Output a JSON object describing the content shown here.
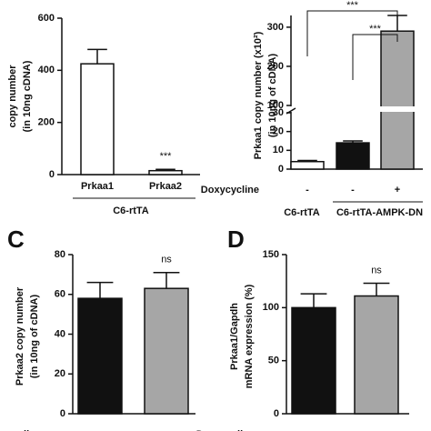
{
  "chart_data": [
    {
      "type": "bar",
      "categories": [
        "Prkaa1",
        "Prkaa2"
      ],
      "values": [
        425,
        15
      ],
      "errors": [
        55,
        5
      ],
      "colors": [
        "#ffffff",
        "#ffffff"
      ],
      "ylim": [
        0,
        600
      ],
      "yticks": [
        0,
        200,
        400,
        600
      ],
      "y_label": [
        "copy number",
        "(in 10ng cDNA)"
      ],
      "group": "C6-rtTA",
      "annotation": "***"
    },
    {
      "type": "bar",
      "y_break": true,
      "categories": [
        "-",
        "-",
        "+"
      ],
      "x_label": "Doxycycline",
      "values": [
        4,
        14,
        290
      ],
      "errors": [
        0.6,
        1,
        40
      ],
      "colors": [
        "#ffffff",
        "#111111",
        "#a6a6a6"
      ],
      "ylim": [
        0,
        30
      ],
      "yticks": [
        0,
        10,
        20,
        30
      ],
      "ylim_upper": [
        100,
        330
      ],
      "yticks_upper": [
        100,
        200,
        300
      ],
      "y_label": [
        "Prkaa1 copy number (x10²)",
        "(in 10ng of cDNA)"
      ],
      "groups": [
        "C6-rtTA",
        "C6-rtTA-AMPK-DN"
      ],
      "annotations": [
        "***",
        "***"
      ]
    },
    {
      "type": "bar",
      "panel": "C",
      "categories": [
        "-",
        "+"
      ],
      "x_label": "Doxycycline",
      "values": [
        58,
        63
      ],
      "errors": [
        8,
        8
      ],
      "colors": [
        "#111111",
        "#a6a6a6"
      ],
      "ylim": [
        0,
        80
      ],
      "yticks": [
        0,
        20,
        40,
        60,
        80
      ],
      "y_label": [
        "Prkaa2 copy number",
        "(in 10ng of cDNA)"
      ],
      "annotation": "ns"
    },
    {
      "type": "bar",
      "panel": "D",
      "categories": [
        "-",
        "+"
      ],
      "x_label": "Doxycycline",
      "values": [
        100,
        111
      ],
      "errors": [
        13,
        12
      ],
      "colors": [
        "#111111",
        "#a6a6a6"
      ],
      "ylim": [
        0,
        150
      ],
      "yticks": [
        0,
        50,
        100,
        150
      ],
      "y_label": [
        "Prkaa1/Gapdh",
        "mRNA expression (%)"
      ],
      "annotation": "ns"
    }
  ]
}
